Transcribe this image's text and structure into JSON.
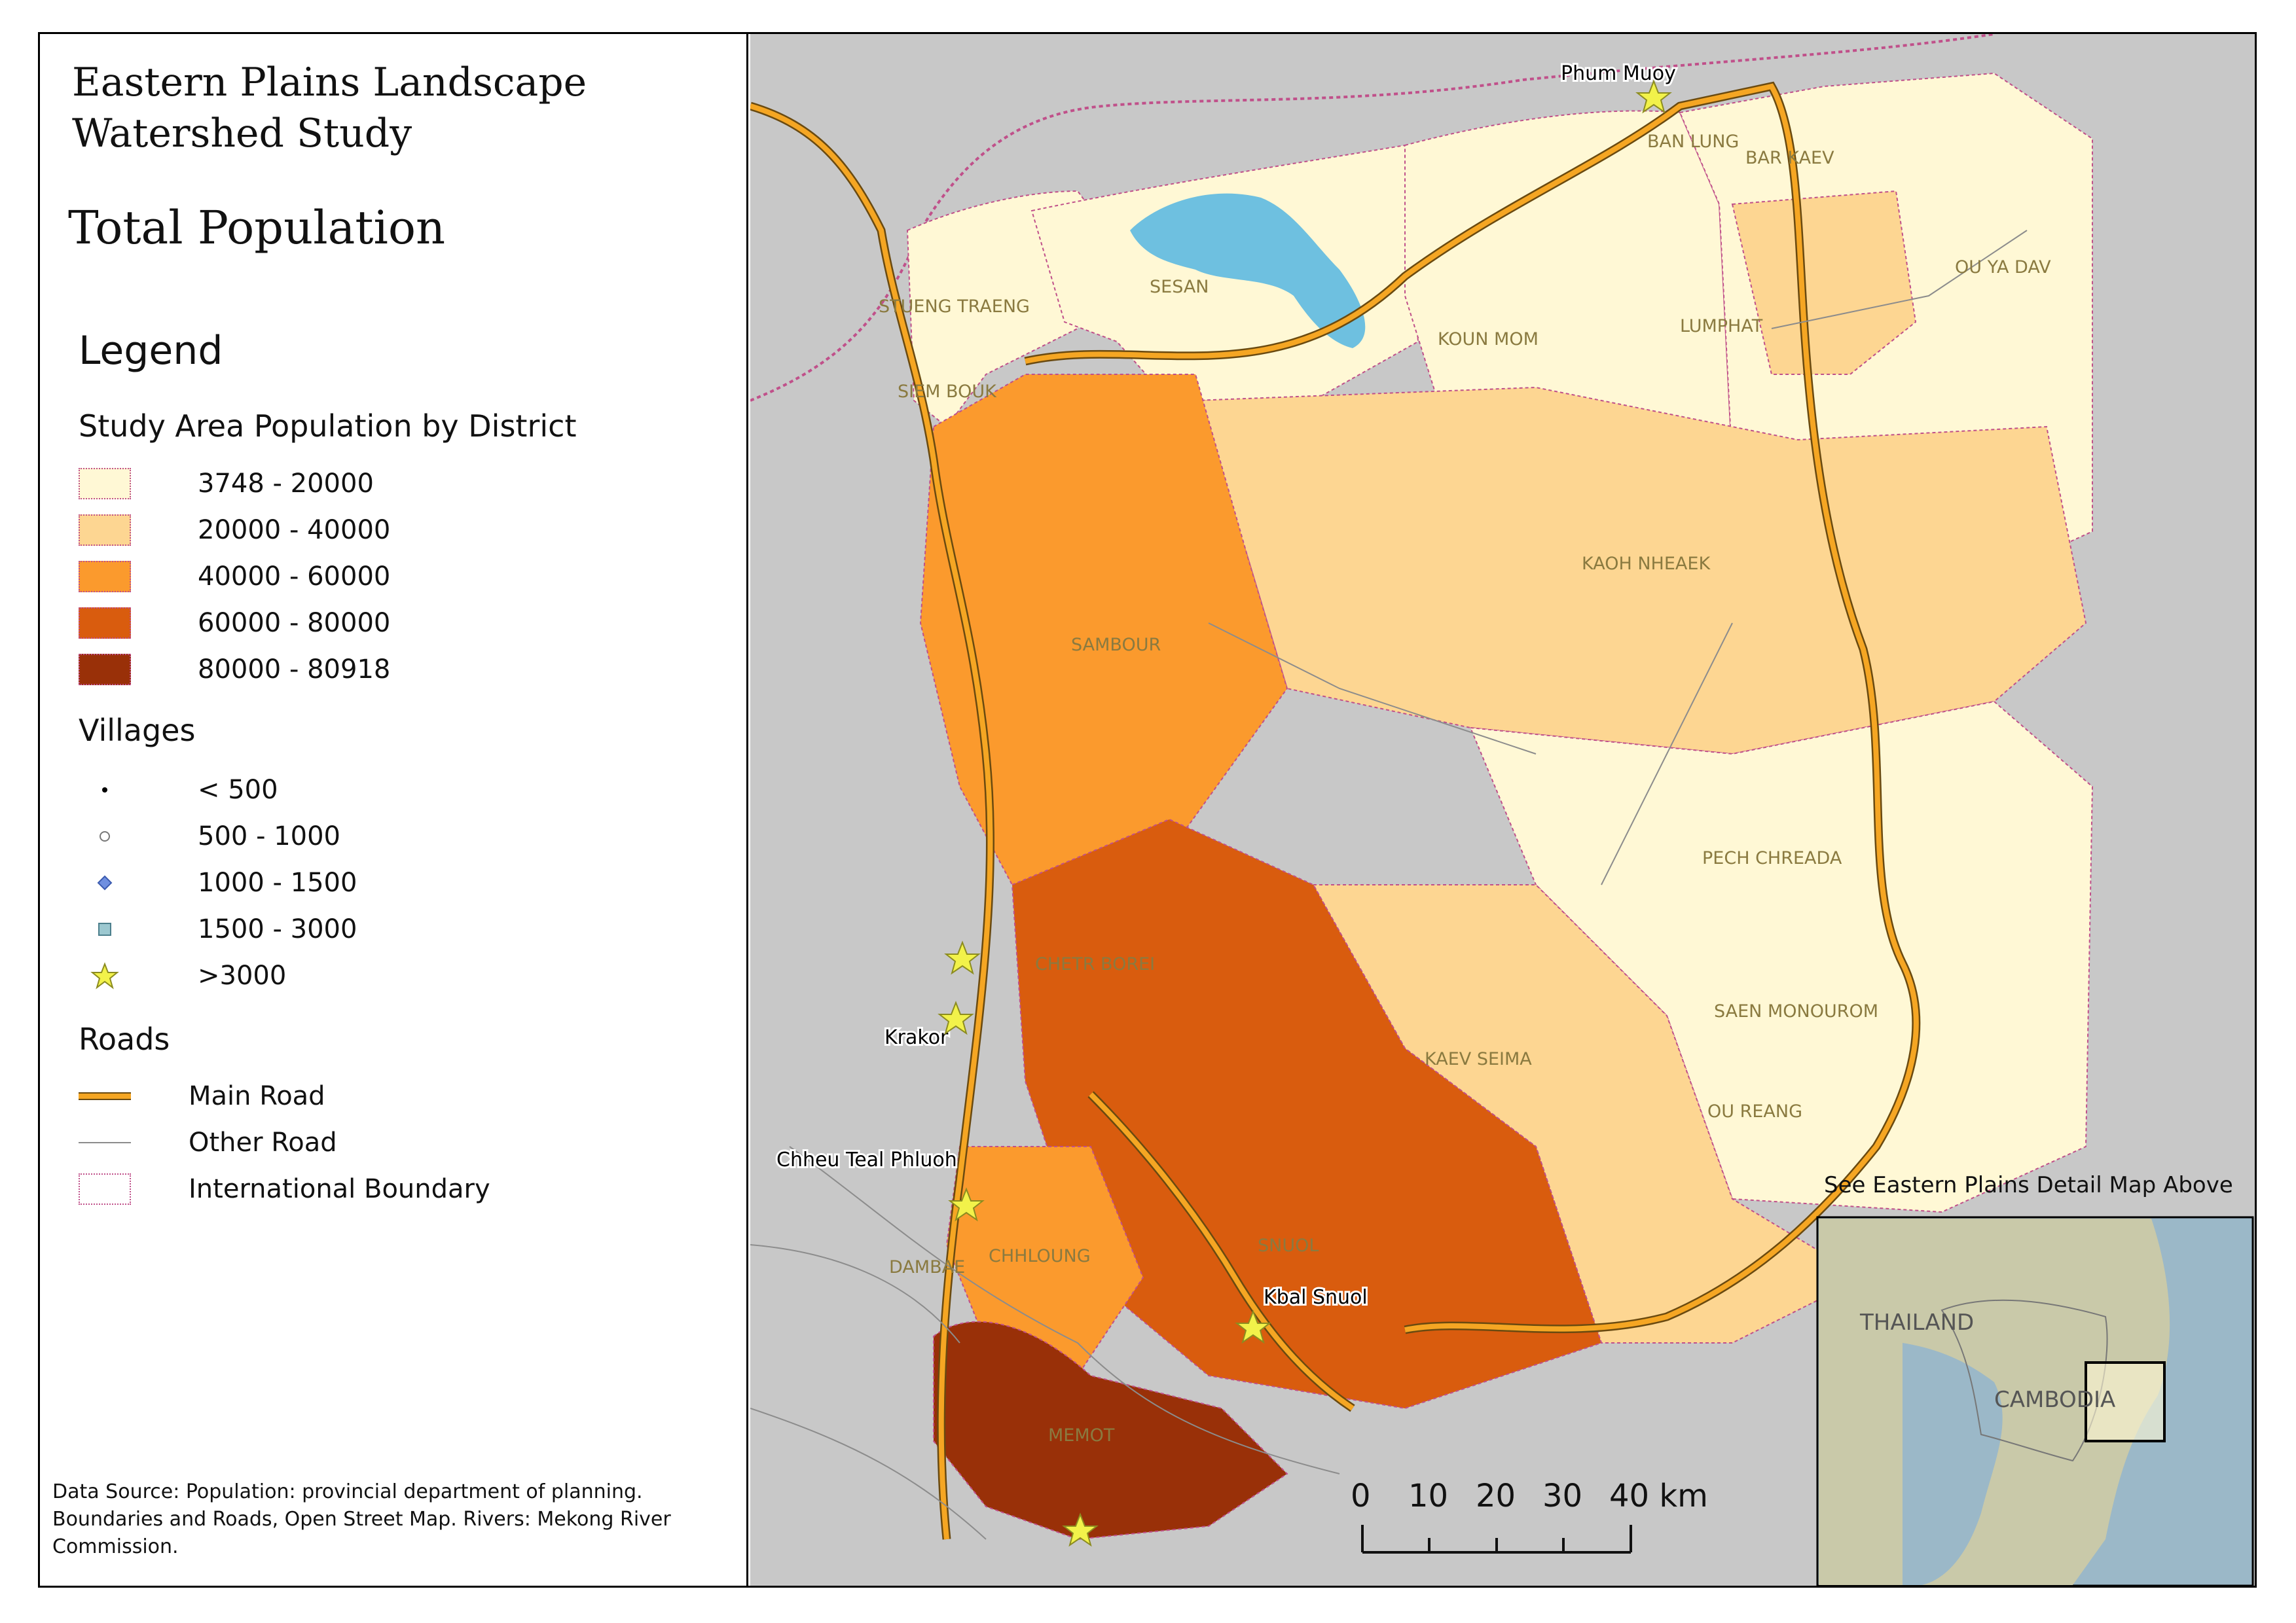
{
  "title_line1": "Eastern Plains Landscape",
  "title_line2": "Watershed Study",
  "subtitle": "Total Population",
  "legend": {
    "heading": "Legend",
    "district_heading": "Study Area Population by District",
    "districts": [
      {
        "label": "3748 - 20000",
        "color": "#fff8d5"
      },
      {
        "label": "20000 - 40000",
        "color": "#fdd692"
      },
      {
        "label": "40000 - 60000",
        "color": "#fb9a2d"
      },
      {
        "label": "60000 - 80000",
        "color": "#d95c0e"
      },
      {
        "label": "80000 - 80918",
        "color": "#993008"
      }
    ],
    "villages_heading": "Villages",
    "villages": [
      {
        "label": "< 500",
        "symbol": "small-black-dot"
      },
      {
        "label": "500 - 1000",
        "symbol": "white-circle"
      },
      {
        "label": "1000 - 1500",
        "symbol": "blue-diamond"
      },
      {
        "label": "1500 - 3000",
        "symbol": "teal-square"
      },
      {
        "label": ">3000",
        "symbol": "yellow-star"
      }
    ],
    "roads_heading": "Roads",
    "roads": [
      {
        "label": "Main Road",
        "color": "#f5a623"
      },
      {
        "label": "Other Road",
        "color": "#8c8c8c"
      },
      {
        "label": "International Boundary",
        "color": "#c0508a"
      }
    ]
  },
  "data_source": "Data Source: Population: provincial department of planning. Boundaries and Roads, Open Street Map. Rivers: Mekong River Commission.",
  "districts_on_map": [
    "STUENG TRAENG",
    "SESAN",
    "SIEM BOUK",
    "KOUN MOM",
    "LUMPHAT",
    "BAN LUNG",
    "BAR KAEV",
    "OU YA DAV",
    "SAMBOUR",
    "KAOH NHEAEK",
    "PECH CHREADA",
    "CHETR BOREI",
    "KAEV SEIMA",
    "SAEN MONOUROM",
    "OU REANG",
    "CHHLOUNG",
    "DAMBAE",
    "SNUOL",
    "MEMOT"
  ],
  "towns": [
    "Phum Muoy",
    "Krakor",
    "Chheu Teal Phluoh",
    "Kbal Snuol"
  ],
  "scale_bar": {
    "ticks": [
      "0",
      "10",
      "20",
      "30",
      "40 km"
    ]
  },
  "inset": {
    "caption": "See Eastern Plains Detail Map Above",
    "labels": [
      "THAILAND",
      "CAMBODIA"
    ]
  },
  "colors": {
    "background": "#c8c8c8",
    "water": "#6ec0e0",
    "inset_land": "#c9c9a9",
    "inset_sea": "#9bb8c8"
  }
}
